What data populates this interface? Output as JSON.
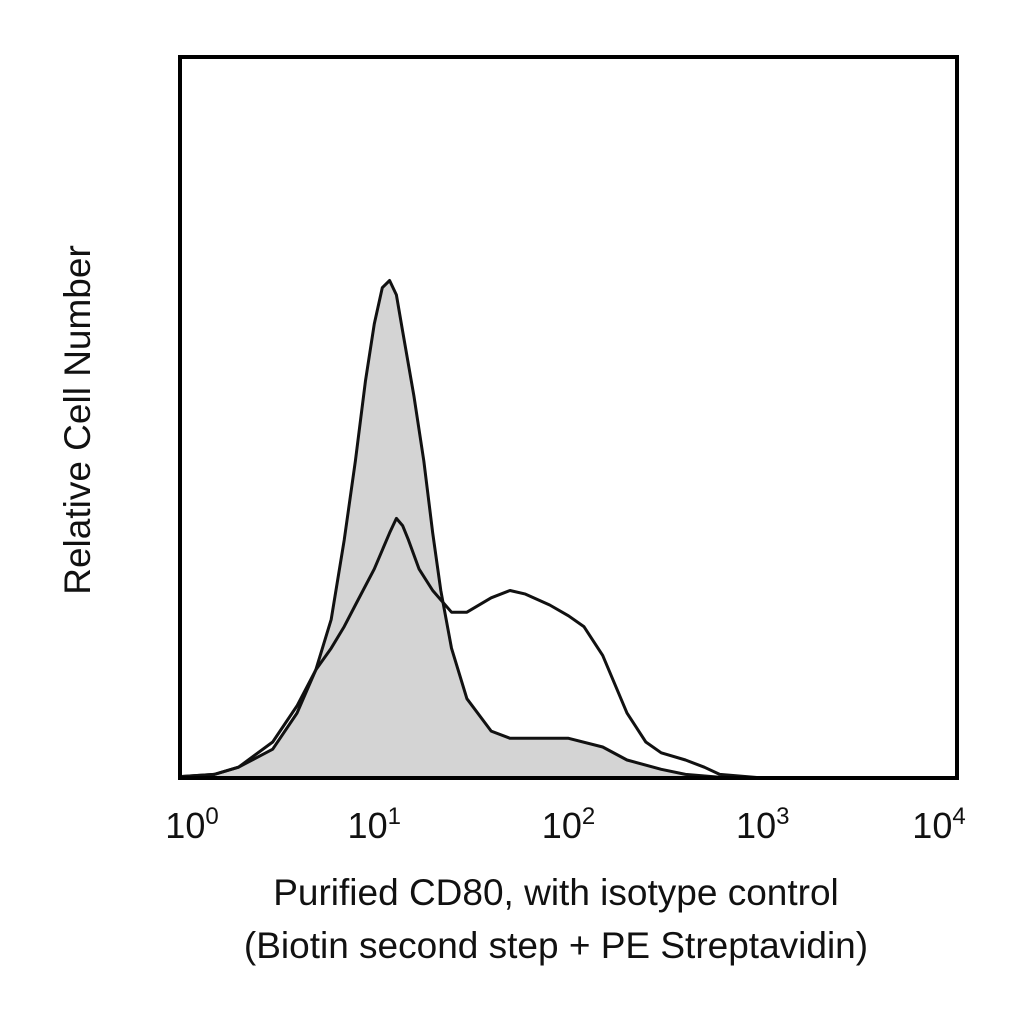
{
  "chart_data": {
    "type": "area",
    "xscale": "log",
    "xlim": [
      1,
      10000
    ],
    "ylim": [
      0,
      100
    ],
    "grid": false,
    "legend": "none",
    "xticks": [
      {
        "base": "10",
        "exp": "0",
        "value": 1
      },
      {
        "base": "10",
        "exp": "1",
        "value": 10
      },
      {
        "base": "10",
        "exp": "2",
        "value": 100
      },
      {
        "base": "10",
        "exp": "3",
        "value": 1000
      },
      {
        "base": "10",
        "exp": "4",
        "value": 10000
      }
    ],
    "xlabel_line1": "Purified CD80, with isotype control",
    "xlabel_line2": "(Biotin second step + PE Streptavidin)",
    "ylabel": "Relative Cell Number",
    "colors": {
      "fill": "#d4d4d4",
      "line": "#111111",
      "frame": "#000000"
    },
    "series": [
      {
        "style": "filled",
        "x": [
          1.0,
          1.5,
          2.0,
          3.0,
          4.0,
          5.0,
          6.0,
          7.0,
          8.0,
          9.0,
          10.0,
          11.0,
          12.0,
          13.0,
          14.0,
          16.0,
          18.0,
          20.0,
          22.0,
          25.0,
          30.0,
          40.0,
          50.0,
          80.0,
          100.0,
          150.0,
          200.0,
          300.0,
          400.0,
          600.0,
          1000.0
        ],
        "values": [
          0.2,
          0.5,
          1.5,
          4,
          9,
          15,
          22,
          33,
          44,
          55,
          63,
          68,
          69,
          67,
          62,
          53,
          44,
          34,
          26,
          18,
          11,
          6.5,
          5.5,
          5.5,
          5.5,
          4.3,
          2.5,
          1.2,
          0.5,
          0.1,
          0
        ]
      },
      {
        "style": "outline",
        "x": [
          1.0,
          1.5,
          2.0,
          3.0,
          4.0,
          5.0,
          6.0,
          7.0,
          8.0,
          10.0,
          12.0,
          13.0,
          14.0,
          15.0,
          17.0,
          20.0,
          25.0,
          30.0,
          40.0,
          50.0,
          60.0,
          80.0,
          100.0,
          120.0,
          150.0,
          200.0,
          250.0,
          300.0,
          400.0,
          500.0,
          600.0,
          1000.0
        ],
        "values": [
          0.2,
          0.5,
          1.5,
          5,
          10,
          15,
          18,
          21,
          24,
          29,
          34,
          36,
          35,
          33,
          29,
          26,
          23,
          23,
          25,
          26,
          25.5,
          24,
          22.5,
          21,
          17,
          9,
          5,
          3.5,
          2.5,
          1.5,
          0.5,
          0
        ]
      }
    ]
  }
}
